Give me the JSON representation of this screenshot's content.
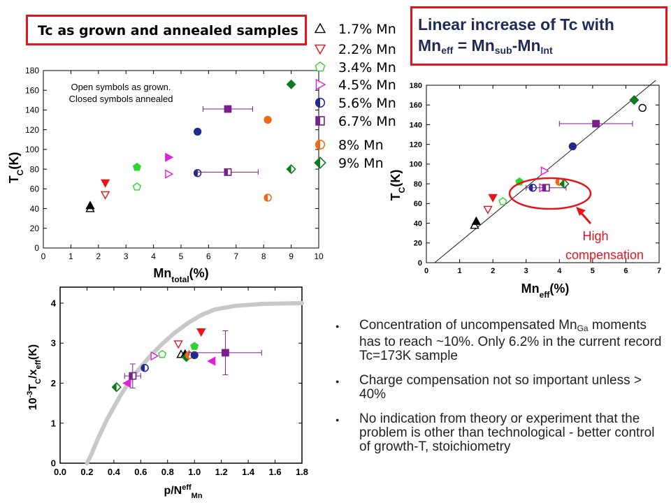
{
  "title_box": {
    "text": "Tc as grown and annealed samples"
  },
  "headline": {
    "line1": "Linear increase of Tc with",
    "prefix": "Mn",
    "sub_eff": "eff",
    "mid": " = Mn",
    "sub_sub": "sub",
    "dash": "-Mn",
    "sub_int": "Int"
  },
  "legend": [
    {
      "label": "1.7% Mn",
      "marker": "triangle-up-open",
      "color": "#000000"
    },
    {
      "label": "2.2% Mn",
      "marker": "triangle-down-open",
      "color": "#e8141c"
    },
    {
      "label": "3.4% Mn",
      "marker": "pentagon-open",
      "color": "#2fd52f"
    },
    {
      "label": "4.5% Mn",
      "marker": "triangle-right-open",
      "color": "#e020d8"
    },
    {
      "label": "5.6% Mn",
      "marker": "circle-half",
      "color": "#1e2a8c"
    },
    {
      "label": "6.7% Mn",
      "marker": "square-half",
      "color": "#7a1f8c"
    },
    {
      "label": "8% Mn",
      "marker": "circle-half",
      "color": "#ee6a1a"
    },
    {
      "label": "9% Mn",
      "marker": "diamond-half",
      "color": "#0f7a1f"
    }
  ],
  "annotation_high": {
    "line1": "High",
    "line2": "compensation",
    "color": "#e8141c"
  },
  "bullets": {
    "b1_part1": "Concentration of uncompensated Mn",
    "b1_sub": "Ga",
    "b1_part2": "moments has to reach ~10%. Only 6.2% in the current record Tc=173K sample",
    "b2": "Charge compensation not so important unless > 40%",
    "b3": "No indication from theory or experiment that the problem is other than technological - better control of growth-T, stoichiometry"
  },
  "chart_data": [
    {
      "type": "scatter",
      "id": "tc-vs-mntotal",
      "xlabel": "Mn",
      "xlabel_sub": "total",
      "xlabel_suffix": "(%)",
      "ylabel": "T",
      "ylabel_sub": "C",
      "ylabel_suffix": "(K)",
      "xlim": [
        0,
        10
      ],
      "ylim": [
        0,
        180
      ],
      "xticks": [
        "0",
        "1",
        "2",
        "3",
        "4",
        "5",
        "6",
        "7",
        "8",
        "9",
        "10"
      ],
      "yticks": [
        "0",
        "20",
        "40",
        "60",
        "80",
        "100",
        "120",
        "140",
        "160",
        "180"
      ],
      "annotation": [
        "Open symbols as grown.",
        "Closed symbols annealed"
      ],
      "points": [
        {
          "x": 1.7,
          "y": 40,
          "marker": "triangle-up-open",
          "color": "#000000"
        },
        {
          "x": 1.7,
          "y": 43,
          "marker": "triangle-up",
          "color": "#000000"
        },
        {
          "x": 2.25,
          "y": 54,
          "marker": "triangle-down-open",
          "color": "#e8141c"
        },
        {
          "x": 2.25,
          "y": 66,
          "marker": "triangle-down",
          "color": "#e8141c"
        },
        {
          "x": 3.4,
          "y": 62,
          "marker": "pentagon-open",
          "color": "#2fd52f"
        },
        {
          "x": 3.4,
          "y": 82,
          "marker": "pentagon",
          "color": "#2fd52f"
        },
        {
          "x": 4.55,
          "y": 75,
          "marker": "triangle-right-open",
          "color": "#e020d8"
        },
        {
          "x": 4.55,
          "y": 92,
          "marker": "triangle-right",
          "color": "#e020d8"
        },
        {
          "x": 5.6,
          "y": 76,
          "marker": "circle-half",
          "color": "#1e2a8c"
        },
        {
          "x": 5.6,
          "y": 118,
          "marker": "circle",
          "color": "#1e2a8c"
        },
        {
          "x": 6.7,
          "y": 77,
          "marker": "square-half",
          "color": "#7a1f8c",
          "xerr": 1.1
        },
        {
          "x": 6.7,
          "y": 141,
          "marker": "square",
          "color": "#7a1f8c",
          "xerr": 0.9
        },
        {
          "x": 8.15,
          "y": 51,
          "marker": "circle-half",
          "color": "#ee6a1a"
        },
        {
          "x": 8.15,
          "y": 130,
          "marker": "circle",
          "color": "#ee6a1a"
        },
        {
          "x": 9.0,
          "y": 80,
          "marker": "diamond-half",
          "color": "#0f7a1f"
        },
        {
          "x": 9.0,
          "y": 166,
          "marker": "diamond",
          "color": "#0f7a1f"
        }
      ]
    },
    {
      "type": "scatter",
      "id": "tc-vs-mneff",
      "xlabel": "Mn",
      "xlabel_sub": "eff",
      "xlabel_suffix": "(%)",
      "ylabel": "T",
      "ylabel_sub": "C",
      "ylabel_suffix": "(K)",
      "xlim": [
        0,
        7
      ],
      "ylim": [
        0,
        180
      ],
      "xticks": [
        "0",
        "1",
        "2",
        "3",
        "4",
        "5",
        "6",
        "7"
      ],
      "yticks": [
        "0",
        "20",
        "40",
        "60",
        "80",
        "100",
        "120",
        "140",
        "160",
        "180"
      ],
      "fit_line": {
        "x0": 0.25,
        "y0": 0,
        "x1": 6.9,
        "y1": 185
      },
      "points": [
        {
          "x": 1.45,
          "y": 38,
          "marker": "triangle-up-open",
          "color": "#000000"
        },
        {
          "x": 1.5,
          "y": 42,
          "marker": "triangle-up",
          "color": "#000000"
        },
        {
          "x": 1.85,
          "y": 54,
          "marker": "triangle-down-open",
          "color": "#e8141c"
        },
        {
          "x": 2.0,
          "y": 66,
          "marker": "triangle-down",
          "color": "#e8141c"
        },
        {
          "x": 2.3,
          "y": 62,
          "marker": "pentagon-open",
          "color": "#2fd52f"
        },
        {
          "x": 2.8,
          "y": 82,
          "marker": "pentagon",
          "color": "#2fd52f"
        },
        {
          "x": 3.55,
          "y": 93,
          "marker": "triangle-right-open",
          "color": "#e020d8"
        },
        {
          "x": 3.5,
          "y": 76,
          "marker": "triangle-right-open",
          "color": "#e020d8"
        },
        {
          "x": 4.4,
          "y": 118,
          "marker": "circle",
          "color": "#1e2a8c"
        },
        {
          "x": 3.2,
          "y": 76,
          "marker": "circle-half",
          "color": "#1e2a8c"
        },
        {
          "x": 5.1,
          "y": 141,
          "marker": "square",
          "color": "#7a1f8c",
          "xerr": 1.1
        },
        {
          "x": 3.6,
          "y": 76,
          "marker": "square-half",
          "color": "#7a1f8c",
          "xerr": 0.6
        },
        {
          "x": 6.5,
          "y": 157,
          "marker": "circle-open",
          "color": "#000000"
        },
        {
          "x": 4.0,
          "y": 82,
          "marker": "circle-half",
          "color": "#ee6a1a"
        },
        {
          "x": 6.25,
          "y": 165,
          "marker": "diamond",
          "color": "#0f7a1f"
        },
        {
          "x": 4.15,
          "y": 80,
          "marker": "diamond-half",
          "color": "#0f7a1f"
        }
      ]
    },
    {
      "type": "scatter",
      "id": "tc-over-xeff-vs-p",
      "xlabel": "p/N",
      "xlabel_sup": "eff",
      "xlabel_sub": "Mn",
      "ylabel": "10",
      "ylabel_sup": "-3",
      "ylabel_mid": "T",
      "ylabel_sub": "C",
      "ylabel_suffix": "/x",
      "ylabel_sub2": "eff",
      "ylabel_suffix2": "(K)",
      "xlim": [
        0,
        1.8
      ],
      "ylim": [
        0,
        4.4
      ],
      "xticks": [
        "0.0",
        "0.2",
        "0.4",
        "0.6",
        "0.8",
        "1.0",
        "1.2",
        "1.4",
        "1.6",
        "1.8"
      ],
      "yticks": [
        "0",
        "1",
        "2",
        "3",
        "4"
      ],
      "theory_curve": [
        [
          0.2,
          0
        ],
        [
          0.23,
          0.2
        ],
        [
          0.28,
          0.6
        ],
        [
          0.35,
          1.1
        ],
        [
          0.45,
          1.7
        ],
        [
          0.55,
          2.2
        ],
        [
          0.65,
          2.6
        ],
        [
          0.75,
          2.95
        ],
        [
          0.85,
          3.25
        ],
        [
          0.95,
          3.5
        ],
        [
          1.05,
          3.7
        ],
        [
          1.15,
          3.84
        ],
        [
          1.3,
          3.93
        ],
        [
          1.5,
          3.98
        ],
        [
          1.8,
          4.0
        ]
      ],
      "points": [
        {
          "x": 0.42,
          "y": 1.9,
          "marker": "diamond-half",
          "color": "#0f7a1f"
        },
        {
          "x": 0.5,
          "y": 2.0,
          "marker": "triangle-left",
          "color": "#e020d8"
        },
        {
          "x": 0.54,
          "y": 2.18,
          "marker": "square-half",
          "color": "#7a1f8c",
          "xerr": 0.06,
          "yerr": 0.3
        },
        {
          "x": 0.63,
          "y": 2.38,
          "marker": "circle-half",
          "color": "#1e2a8c"
        },
        {
          "x": 0.7,
          "y": 2.68,
          "marker": "triangle-right-open",
          "color": "#e020d8"
        },
        {
          "x": 0.76,
          "y": 2.72,
          "marker": "pentagon-open",
          "color": "#2fd52f"
        },
        {
          "x": 0.9,
          "y": 2.72,
          "marker": "triangle-up-open",
          "color": "#000000"
        },
        {
          "x": 0.93,
          "y": 2.73,
          "marker": "triangle-up",
          "color": "#000000"
        },
        {
          "x": 0.88,
          "y": 2.98,
          "marker": "triangle-down-open",
          "color": "#e8141c"
        },
        {
          "x": 0.94,
          "y": 2.65,
          "marker": "diamond",
          "color": "#0f7a1f"
        },
        {
          "x": 0.96,
          "y": 2.7,
          "marker": "circle-half",
          "color": "#ee6a1a"
        },
        {
          "x": 1.0,
          "y": 2.7,
          "marker": "circle",
          "color": "#1e2a8c"
        },
        {
          "x": 1.0,
          "y": 2.92,
          "marker": "pentagon",
          "color": "#2fd52f"
        },
        {
          "x": 1.05,
          "y": 3.28,
          "marker": "triangle-down",
          "color": "#e8141c"
        },
        {
          "x": 1.13,
          "y": 2.55,
          "marker": "triangle-left",
          "color": "#e020d8"
        },
        {
          "x": 1.23,
          "y": 2.76,
          "marker": "square",
          "color": "#7a1f8c",
          "xerr": 0.27,
          "yerr": 0.55
        }
      ]
    }
  ]
}
